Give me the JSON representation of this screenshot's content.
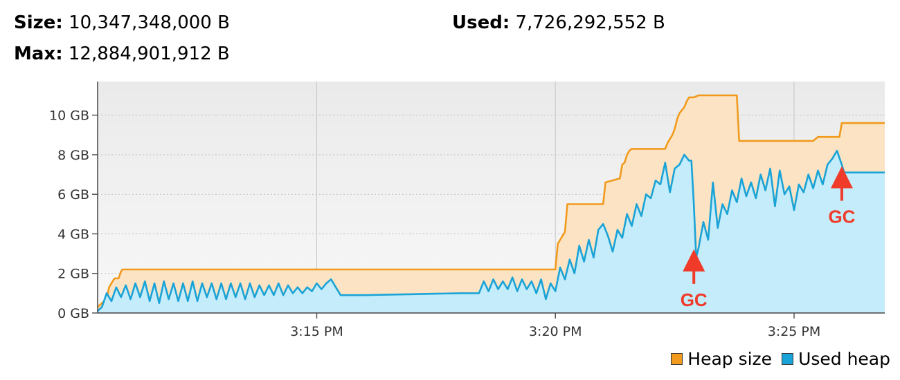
{
  "header": {
    "size_label": "Size:",
    "size_value": "10,347,348,000 B",
    "used_label": "Used:",
    "used_value": "7,726,292,552 B",
    "max_label": "Max:",
    "max_value": "12,884,901,912 B"
  },
  "colors": {
    "heap_line": "#f19a1c",
    "heap_fill": "#fbe3c4",
    "used_line": "#1aa3d6",
    "used_fill": "#c4ecfa",
    "plot_bg": "#f0f0f0",
    "gc": "#f03a2a"
  },
  "chart_data": {
    "type": "area",
    "title": "",
    "xlabel": "",
    "ylabel": "",
    "x_unit": "minutes after 3:10 PM",
    "xlim": [
      0.41,
      16.9
    ],
    "ylim": [
      0,
      11.7
    ],
    "y_ticks": [
      {
        "value": 0,
        "label": "0 GB"
      },
      {
        "value": 2,
        "label": "2 GB"
      },
      {
        "value": 4,
        "label": "4 GB"
      },
      {
        "value": 6,
        "label": "6 GB"
      },
      {
        "value": 8,
        "label": "8 GB"
      },
      {
        "value": 10,
        "label": "10 GB"
      }
    ],
    "x_ticks": [
      {
        "value": 5,
        "label": "3:15 PM"
      },
      {
        "value": 10,
        "label": "3:20 PM"
      },
      {
        "value": 15,
        "label": "3:25 PM"
      }
    ],
    "grid": true,
    "legend_position": "bottom-right",
    "annotations": [
      {
        "text": "GC",
        "x": 12.9,
        "y": 2.8,
        "placement": "below"
      },
      {
        "text": "GC",
        "x": 16.0,
        "y": 7.0,
        "placement": "below"
      }
    ],
    "series": [
      {
        "name": "Heap size",
        "x": [
          0.41,
          0.5,
          0.6,
          0.65,
          0.75,
          0.77,
          0.85,
          0.9,
          0.93,
          10.0,
          10.05,
          10.2,
          10.25,
          10.75,
          10.8,
          11.0,
          11.05,
          11.35,
          11.4,
          11.45,
          11.5,
          11.55,
          11.6,
          11.62,
          11.8,
          11.85,
          12.3,
          12.35,
          12.45,
          12.5,
          12.55,
          12.6,
          12.7,
          12.75,
          12.8,
          12.9,
          13.0,
          13.05,
          13.1,
          13.8,
          13.85,
          14.2,
          14.8,
          14.85,
          15.0,
          15.4,
          15.5,
          15.95,
          16.0,
          16.9
        ],
        "y": [
          0.3,
          0.5,
          0.7,
          1.3,
          1.7,
          1.75,
          1.75,
          2.1,
          2.2,
          2.2,
          3.5,
          4.1,
          5.5,
          5.5,
          5.5,
          5.5,
          6.6,
          6.8,
          7.5,
          7.6,
          8.0,
          8.2,
          8.3,
          8.3,
          8.3,
          8.3,
          8.3,
          8.6,
          9.0,
          9.3,
          9.8,
          10.1,
          10.4,
          10.7,
          10.9,
          10.9,
          11.0,
          11.0,
          11.0,
          11.0,
          8.7,
          8.7,
          8.7,
          8.7,
          8.7,
          8.7,
          8.9,
          8.9,
          9.6,
          9.6
        ]
      },
      {
        "name": "Used heap",
        "x": [
          0.41,
          0.5,
          0.6,
          0.7,
          0.8,
          0.9,
          1.0,
          1.1,
          1.2,
          1.3,
          1.4,
          1.5,
          1.6,
          1.7,
          1.8,
          1.9,
          2.0,
          2.1,
          2.2,
          2.3,
          2.4,
          2.5,
          2.6,
          2.7,
          2.8,
          2.9,
          3.0,
          3.1,
          3.2,
          3.3,
          3.4,
          3.5,
          3.6,
          3.7,
          3.8,
          3.9,
          4.0,
          4.1,
          4.2,
          4.3,
          4.4,
          4.5,
          4.6,
          4.7,
          4.8,
          4.9,
          5.0,
          5.1,
          5.2,
          5.3,
          5.4,
          5.5,
          6.0,
          7.0,
          8.0,
          8.4,
          8.5,
          8.6,
          8.7,
          8.8,
          8.9,
          9.0,
          9.1,
          9.2,
          9.3,
          9.4,
          9.5,
          9.6,
          9.7,
          9.8,
          9.9,
          10.0,
          10.1,
          10.2,
          10.3,
          10.4,
          10.5,
          10.6,
          10.7,
          10.8,
          10.9,
          11.0,
          11.1,
          11.2,
          11.3,
          11.4,
          11.5,
          11.6,
          11.7,
          11.8,
          11.9,
          12.0,
          12.1,
          12.2,
          12.3,
          12.4,
          12.5,
          12.6,
          12.7,
          12.8,
          12.85,
          12.9,
          12.95,
          13.0,
          13.1,
          13.2,
          13.3,
          13.4,
          13.5,
          13.6,
          13.7,
          13.8,
          13.9,
          14.0,
          14.1,
          14.2,
          14.3,
          14.4,
          14.5,
          14.6,
          14.7,
          14.8,
          14.9,
          15.0,
          15.1,
          15.2,
          15.3,
          15.4,
          15.5,
          15.6,
          15.7,
          15.8,
          15.9,
          16.0,
          16.05,
          16.1,
          16.3,
          16.6,
          16.9
        ],
        "y": [
          0.1,
          0.3,
          1.0,
          0.6,
          1.3,
          0.8,
          1.4,
          0.7,
          1.5,
          0.8,
          1.6,
          0.6,
          1.5,
          0.5,
          1.6,
          0.7,
          1.5,
          0.6,
          1.5,
          0.6,
          1.6,
          0.6,
          1.5,
          0.8,
          1.5,
          0.7,
          1.5,
          0.7,
          1.5,
          0.8,
          1.5,
          0.7,
          1.5,
          0.8,
          1.4,
          0.9,
          1.4,
          0.9,
          1.5,
          0.9,
          1.4,
          1.0,
          1.3,
          1.0,
          1.3,
          1.1,
          1.5,
          1.2,
          1.5,
          1.7,
          1.3,
          0.9,
          0.9,
          0.95,
          1.0,
          1.0,
          1.6,
          1.1,
          1.7,
          1.2,
          1.6,
          1.2,
          1.8,
          1.1,
          1.7,
          1.2,
          1.6,
          1.0,
          1.7,
          0.7,
          1.5,
          1.1,
          2.3,
          1.7,
          2.7,
          2.0,
          3.4,
          2.6,
          3.7,
          2.8,
          4.2,
          4.5,
          3.9,
          3.1,
          4.2,
          3.8,
          5.0,
          4.4,
          5.5,
          4.9,
          6.0,
          5.8,
          6.7,
          6.5,
          7.6,
          6.1,
          7.3,
          7.5,
          8.0,
          7.7,
          7.7,
          5.5,
          2.8,
          3.3,
          4.6,
          3.7,
          6.6,
          4.3,
          5.5,
          5.0,
          6.2,
          5.6,
          6.8,
          5.9,
          6.6,
          5.8,
          7.0,
          6.2,
          7.3,
          5.4,
          7.2,
          6.0,
          6.4,
          5.2,
          6.5,
          6.1,
          7.0,
          6.3,
          7.2,
          6.5,
          7.5,
          7.8,
          8.2,
          7.5,
          7.1,
          7.1,
          7.1,
          7.1,
          7.1
        ]
      }
    ]
  }
}
